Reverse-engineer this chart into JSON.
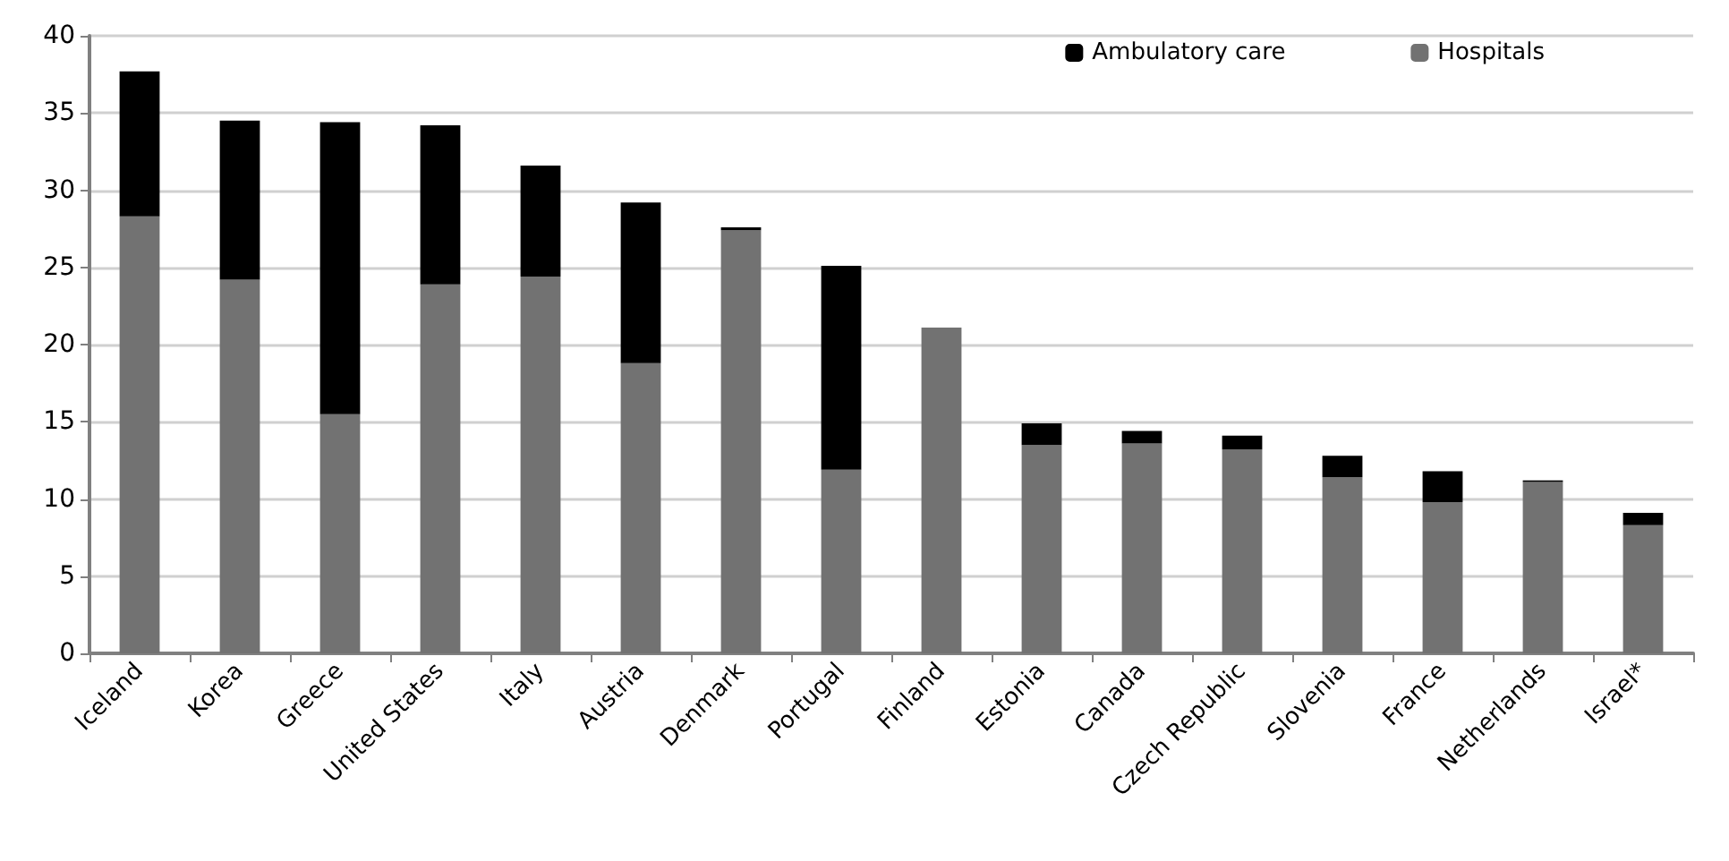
{
  "chart_data": {
    "type": "bar",
    "stacked": true,
    "categories": [
      "Iceland",
      "Korea",
      "Greece",
      "United States",
      "Italy",
      "Austria",
      "Denmark",
      "Portugal",
      "Finland",
      "Estonia",
      "Canada",
      "Czech Republic",
      "Slovenia",
      "France",
      "Netherlands",
      "Israel*"
    ],
    "series": [
      {
        "name": "Hospitals",
        "color": "#727272",
        "values": [
          28.3,
          24.2,
          15.5,
          23.9,
          24.4,
          18.8,
          27.4,
          11.9,
          21.1,
          13.5,
          13.6,
          13.2,
          11.4,
          9.8,
          11.1,
          8.3
        ]
      },
      {
        "name": "Ambulatory care",
        "color": "#000000",
        "values": [
          9.4,
          10.3,
          18.9,
          10.3,
          7.2,
          10.4,
          0.2,
          13.2,
          0,
          1.4,
          0.8,
          0.9,
          1.4,
          2.0,
          0.1,
          0.8
        ]
      }
    ],
    "ylim": [
      0,
      40
    ],
    "yticks": [
      0,
      5,
      10,
      15,
      20,
      25,
      30,
      35,
      40
    ],
    "grid": "y",
    "legend": "top right"
  }
}
